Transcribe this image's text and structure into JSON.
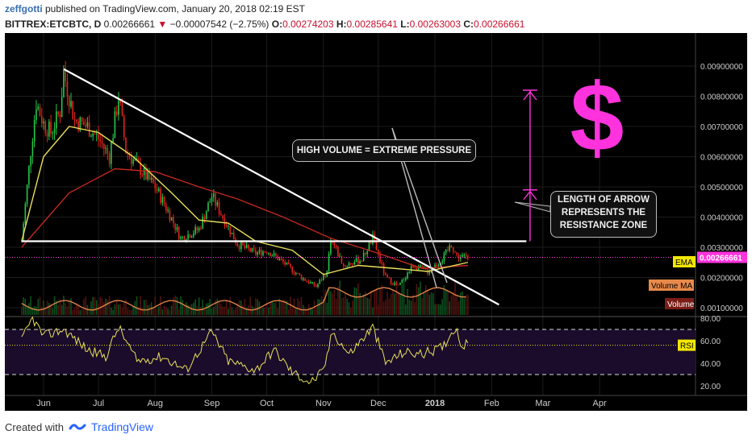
{
  "header": {
    "author": "zeffgotti",
    "published_text": "published on TradingView.com, January 20, 2018 02:19 EST",
    "symbol": "BITTREX:ETCBTC, D",
    "last_price": "0.00266661",
    "change_arrow": "▼",
    "change": "−0.00007542 (−2.75%)",
    "ohlc": [
      {
        "label": "O:",
        "value": "0.00274203"
      },
      {
        "label": "H:",
        "value": "0.00285641"
      },
      {
        "label": "L:",
        "value": "0.00263003"
      },
      {
        "label": "C:",
        "value": "0.00266661"
      }
    ]
  },
  "footer": {
    "created_with": "Created with",
    "brand": "TradingView"
  },
  "annotations": {
    "high_volume": "HIGH VOLUME = EXTREME PRESSURE",
    "arrow_note_line1": "LENGTH OF ARROW",
    "arrow_note_line2": "REPRESENTS THE",
    "arrow_note_line3": "RESISTANCE ZONE",
    "dollar": "$"
  },
  "colors": {
    "background": "#000000",
    "up_candle": "#26c74a",
    "down_candle": "#e0251b",
    "ema": "#e8e05a",
    "sma": "#c0281e",
    "volume_ma": "#e8894a",
    "rsi": "#e8e05a",
    "annotation": "#ff33dd",
    "price_label": "#ff33dd"
  },
  "chart_data": [
    {
      "type": "candlestick",
      "title": "",
      "x_ticks": [
        "Jun",
        "Jul",
        "Aug",
        "Sep",
        "Oct",
        "Nov",
        "Dec",
        "2018",
        "Feb",
        "Mar",
        "Apr"
      ],
      "y_ticks": [
        "0.00900000",
        "0.00800000",
        "0.00700000",
        "0.00600000",
        "0.00500000",
        "0.00400000",
        "0.00300000",
        "0.00200000",
        "0.00100000"
      ],
      "ylim": [
        0.001,
        0.0095
      ],
      "current_price_label": "0.00266661",
      "indicator_labels": [
        "EMA",
        "Volume MA",
        "Volume"
      ],
      "close_approx": [
        {
          "x": "2017-05-20",
          "y": 0.0032
        },
        {
          "x": "2017-05-25",
          "y": 0.0062
        },
        {
          "x": "2017-05-28",
          "y": 0.0078
        },
        {
          "x": "2017-06-01",
          "y": 0.0071
        },
        {
          "x": "2017-06-05",
          "y": 0.0068
        },
        {
          "x": "2017-06-10",
          "y": 0.0075
        },
        {
          "x": "2017-06-12",
          "y": 0.0088
        },
        {
          "x": "2017-06-18",
          "y": 0.0072
        },
        {
          "x": "2017-06-25",
          "y": 0.007
        },
        {
          "x": "2017-07-01",
          "y": 0.0066
        },
        {
          "x": "2017-07-07",
          "y": 0.006
        },
        {
          "x": "2017-07-12",
          "y": 0.008
        },
        {
          "x": "2017-07-16",
          "y": 0.0062
        },
        {
          "x": "2017-07-25",
          "y": 0.0055
        },
        {
          "x": "2017-08-01",
          "y": 0.005
        },
        {
          "x": "2017-08-08",
          "y": 0.0042
        },
        {
          "x": "2017-08-15",
          "y": 0.0033
        },
        {
          "x": "2017-08-25",
          "y": 0.0036
        },
        {
          "x": "2017-09-01",
          "y": 0.0047
        },
        {
          "x": "2017-09-07",
          "y": 0.004
        },
        {
          "x": "2017-09-15",
          "y": 0.0031
        },
        {
          "x": "2017-09-25",
          "y": 0.0028
        },
        {
          "x": "2017-10-01",
          "y": 0.0029
        },
        {
          "x": "2017-10-10",
          "y": 0.0025
        },
        {
          "x": "2017-10-20",
          "y": 0.002
        },
        {
          "x": "2017-10-28",
          "y": 0.0017
        },
        {
          "x": "2017-11-03",
          "y": 0.0022
        },
        {
          "x": "2017-11-05",
          "y": 0.0033
        },
        {
          "x": "2017-11-12",
          "y": 0.0024
        },
        {
          "x": "2017-11-22",
          "y": 0.0026
        },
        {
          "x": "2017-11-28",
          "y": 0.0033
        },
        {
          "x": "2017-12-05",
          "y": 0.002
        },
        {
          "x": "2017-12-12",
          "y": 0.0017
        },
        {
          "x": "2017-12-20",
          "y": 0.0024
        },
        {
          "x": "2017-12-28",
          "y": 0.0022
        },
        {
          "x": "2018-01-05",
          "y": 0.0026
        },
        {
          "x": "2018-01-10",
          "y": 0.0031
        },
        {
          "x": "2018-01-13",
          "y": 0.0027
        },
        {
          "x": "2018-01-19",
          "y": 0.00266661
        }
      ],
      "ema_approx": [
        {
          "x": "2017-05-20",
          "y": 0.0032
        },
        {
          "x": "2017-06-01",
          "y": 0.006
        },
        {
          "x": "2017-06-15",
          "y": 0.007
        },
        {
          "x": "2017-07-01",
          "y": 0.0068
        },
        {
          "x": "2017-07-20",
          "y": 0.006
        },
        {
          "x": "2017-08-10",
          "y": 0.0048
        },
        {
          "x": "2017-08-25",
          "y": 0.0039
        },
        {
          "x": "2017-09-10",
          "y": 0.0038
        },
        {
          "x": "2017-09-25",
          "y": 0.0032
        },
        {
          "x": "2017-10-15",
          "y": 0.0029
        },
        {
          "x": "2017-11-01",
          "y": 0.0021
        },
        {
          "x": "2017-11-20",
          "y": 0.0024
        },
        {
          "x": "2017-12-10",
          "y": 0.0023
        },
        {
          "x": "2017-12-28",
          "y": 0.0022
        },
        {
          "x": "2018-01-19",
          "y": 0.0025
        }
      ],
      "sma_approx": [
        {
          "x": "2017-05-20",
          "y": 0.003
        },
        {
          "x": "2017-06-15",
          "y": 0.0048
        },
        {
          "x": "2017-07-10",
          "y": 0.0056
        },
        {
          "x": "2017-08-01",
          "y": 0.0055
        },
        {
          "x": "2017-08-25",
          "y": 0.005
        },
        {
          "x": "2017-09-15",
          "y": 0.0046
        },
        {
          "x": "2017-10-10",
          "y": 0.004
        },
        {
          "x": "2017-11-05",
          "y": 0.0033
        },
        {
          "x": "2017-12-01",
          "y": 0.0028
        },
        {
          "x": "2017-12-25",
          "y": 0.0023
        },
        {
          "x": "2018-01-19",
          "y": 0.0024
        }
      ],
      "trendline_descending": [
        {
          "x": "2017-06-12",
          "y": 0.0089
        },
        {
          "x": "2018-02-05",
          "y": 0.0011
        }
      ],
      "support_line": [
        {
          "x": "2017-05-20",
          "y": 0.0032
        },
        {
          "x": "2018-02-20",
          "y": 0.0032
        }
      ],
      "current_level_line": {
        "y": 0.00266661
      },
      "resistance_arrow": {
        "x": "2018-02-22",
        "y_from": 0.0032,
        "y_to": 0.0082,
        "mid_head": 0.0049
      }
    },
    {
      "type": "line",
      "title": "",
      "label": "RSI",
      "y_ticks": [
        "80.00",
        "60.00",
        "40.00",
        "20.00"
      ],
      "ylim": [
        12,
        85
      ],
      "upper_band": 70,
      "lower_band": 30,
      "current_level_line": 56,
      "values_approx": [
        {
          "x": "2017-05-20",
          "y": 60
        },
        {
          "x": "2017-05-26",
          "y": 80
        },
        {
          "x": "2017-06-01",
          "y": 64
        },
        {
          "x": "2017-06-12",
          "y": 70
        },
        {
          "x": "2017-06-25",
          "y": 52
        },
        {
          "x": "2017-07-05",
          "y": 46
        },
        {
          "x": "2017-07-12",
          "y": 72
        },
        {
          "x": "2017-07-22",
          "y": 42
        },
        {
          "x": "2017-08-05",
          "y": 46
        },
        {
          "x": "2017-08-18",
          "y": 34
        },
        {
          "x": "2017-09-01",
          "y": 68
        },
        {
          "x": "2017-09-10",
          "y": 42
        },
        {
          "x": "2017-09-25",
          "y": 34
        },
        {
          "x": "2017-10-05",
          "y": 52
        },
        {
          "x": "2017-10-15",
          "y": 32
        },
        {
          "x": "2017-10-25",
          "y": 23
        },
        {
          "x": "2017-11-01",
          "y": 33
        },
        {
          "x": "2017-11-06",
          "y": 68
        },
        {
          "x": "2017-11-15",
          "y": 48
        },
        {
          "x": "2017-11-28",
          "y": 72
        },
        {
          "x": "2017-12-05",
          "y": 40
        },
        {
          "x": "2017-12-15",
          "y": 50
        },
        {
          "x": "2017-12-25",
          "y": 48
        },
        {
          "x": "2018-01-05",
          "y": 54
        },
        {
          "x": "2018-01-12",
          "y": 72
        },
        {
          "x": "2018-01-16",
          "y": 55
        },
        {
          "x": "2018-01-19",
          "y": 57
        }
      ]
    }
  ]
}
